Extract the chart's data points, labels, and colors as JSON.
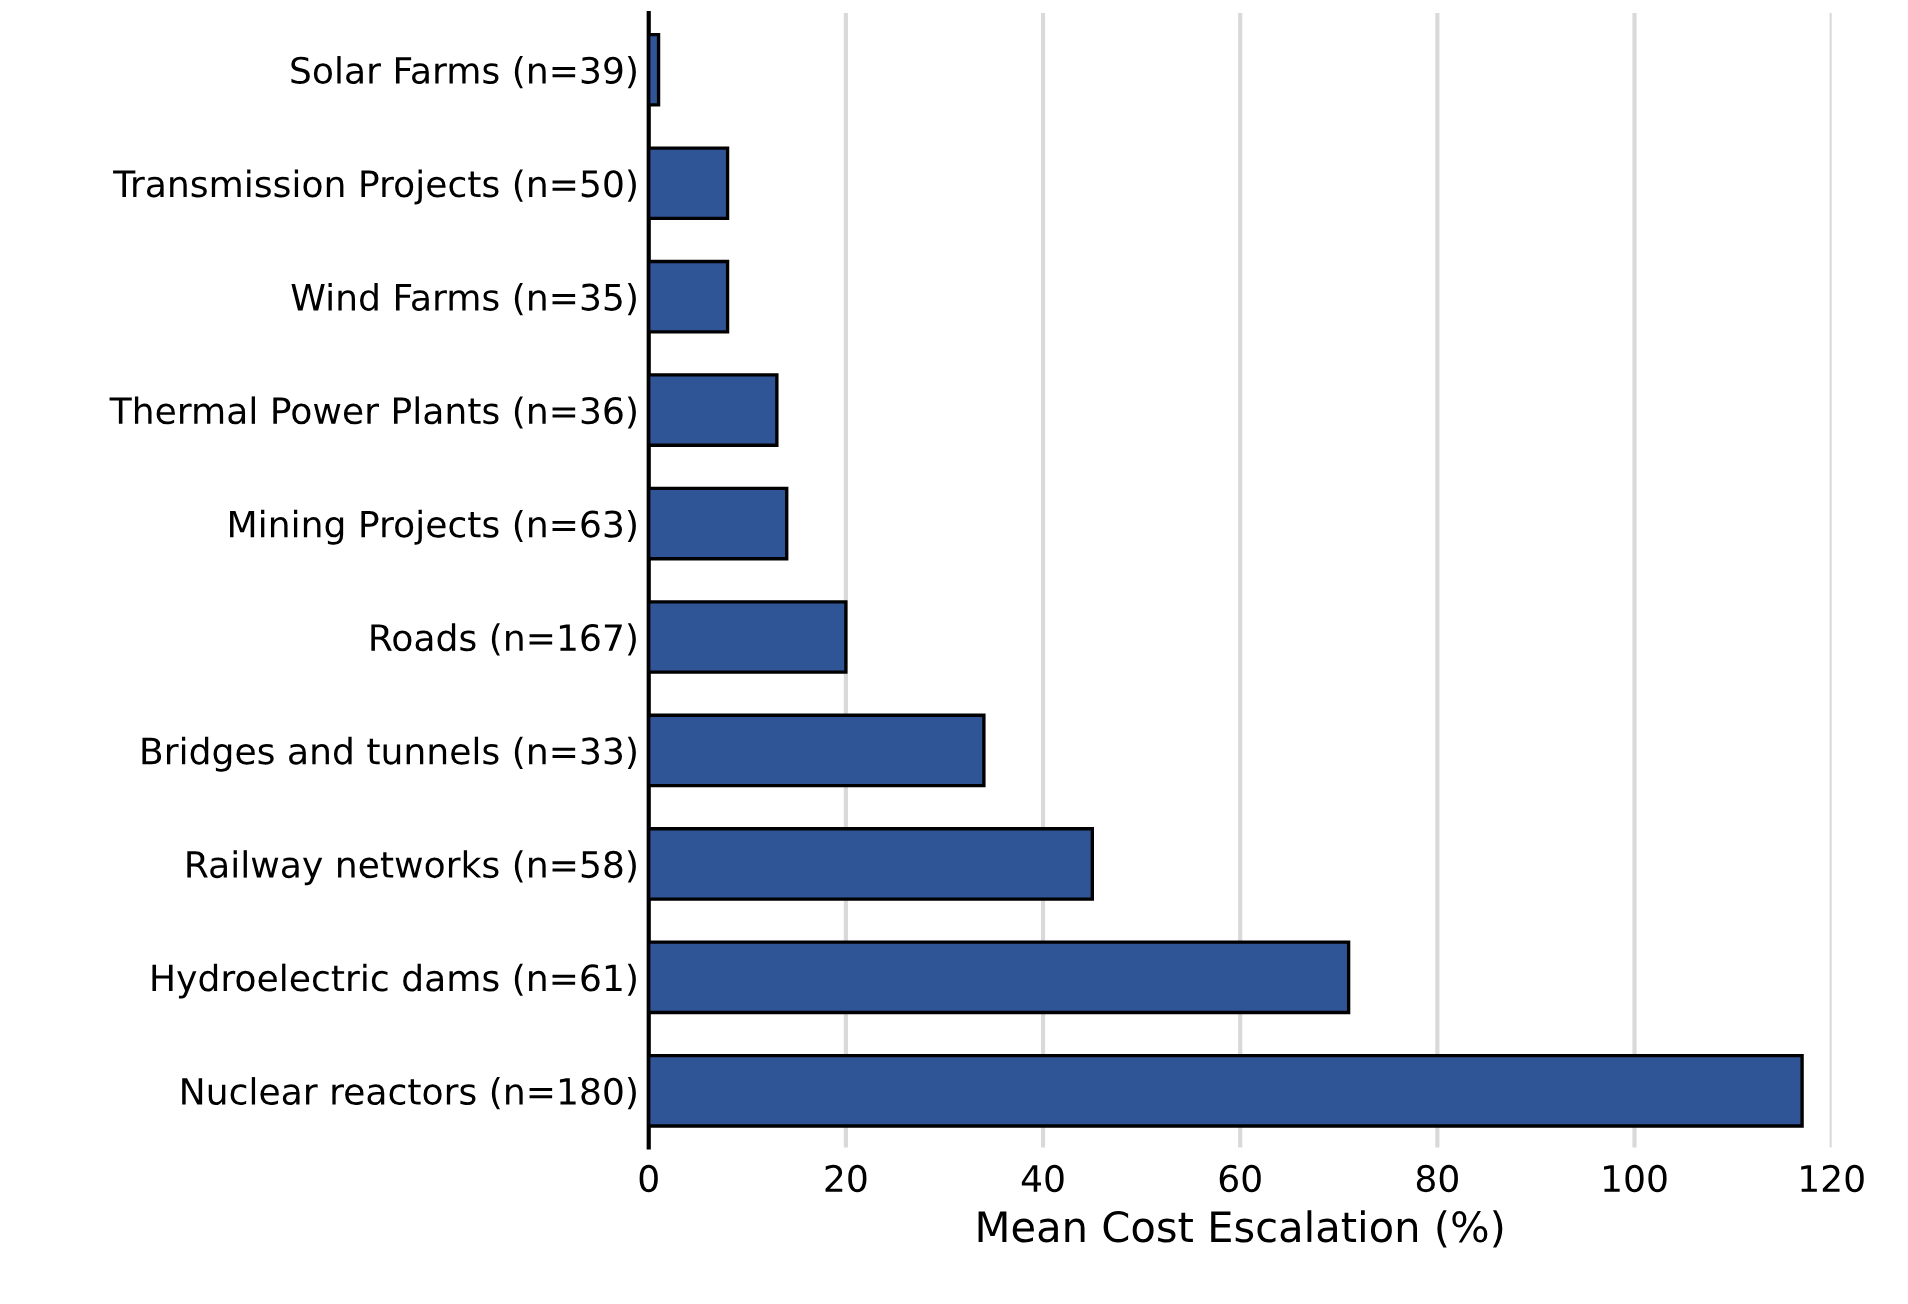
{
  "chart_data": {
    "type": "bar",
    "orientation": "horizontal",
    "xlabel": "Mean Cost Escalation (%)",
    "categories": [
      "Solar Farms (n=39)",
      "Transmission Projects (n=50)",
      "Wind Farms (n=35)",
      "Thermal Power Plants (n=36)",
      "Mining Projects (n=63)",
      "Roads (n=167)",
      "Bridges and tunnels (n=33)",
      "Railway networks (n=58)",
      "Hydroelectric dams (n=61)",
      "Nuclear reactors (n=180)"
    ],
    "values": [
      1,
      8,
      8,
      13,
      14,
      20,
      34,
      45,
      71,
      117
    ],
    "color": "#2f5597",
    "xlim": [
      0,
      120
    ],
    "xticks": [
      0,
      20,
      40,
      60,
      80,
      100,
      120
    ],
    "grid": "x",
    "legend": false
  }
}
